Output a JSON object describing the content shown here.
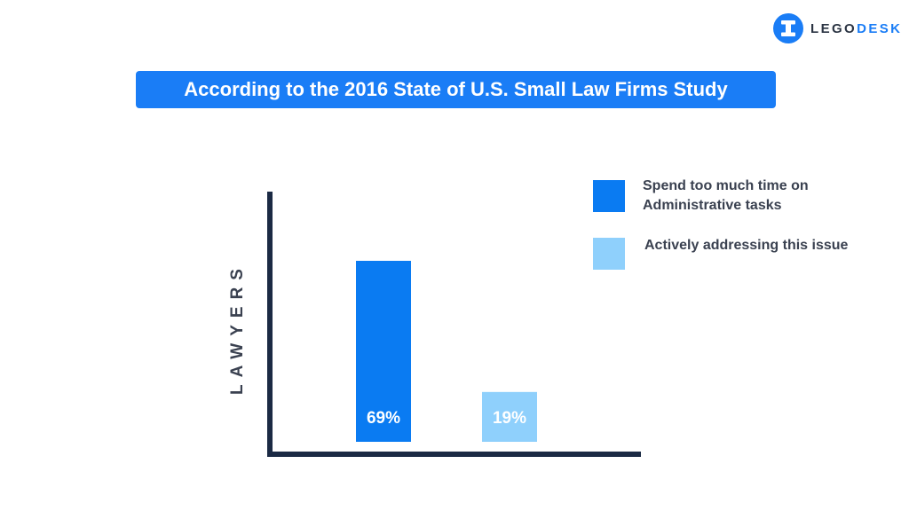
{
  "brand": {
    "name_part1": "LEGO",
    "name_part2": "DESK",
    "logo_icon": "gavel-icon",
    "accent_color": "#1a7df6",
    "text_color": "#2b3443"
  },
  "title": "According to the 2016 State of U.S. Small Law Firms Study",
  "chart_data": {
    "type": "bar",
    "ylabel": "LAWYERS",
    "xlabel": "",
    "ylim": [
      0,
      100
    ],
    "unit": "%",
    "categories": [
      "",
      ""
    ],
    "series": [
      {
        "name": "Spend too much time on Administrative tasks",
        "value": 69,
        "label": "69%",
        "color": "#0a7bf2"
      },
      {
        "name": "Actively addressing this issue",
        "value": 19,
        "label": "19%",
        "color": "#8fd0fc"
      }
    ],
    "axis_color": "#1b2a44",
    "legend_position": "top-right",
    "grid": false
  }
}
